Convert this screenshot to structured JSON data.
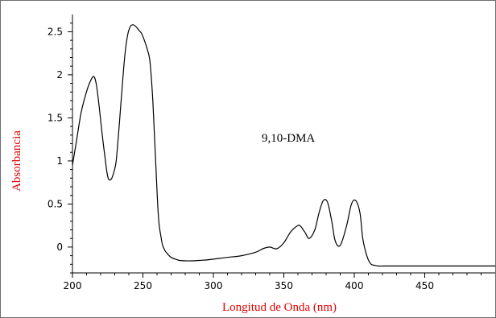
{
  "chart_data": {
    "type": "line",
    "xlabel": "Longitud de Onda (nm)",
    "ylabel": "Absorbancia",
    "annotation": "9,10-DMA",
    "xlim": [
      200,
      500
    ],
    "ylim": [
      -0.3,
      2.7
    ],
    "x_ticks": [
      200,
      250,
      300,
      350,
      400,
      450
    ],
    "x_tick_labels": [
      "200",
      "250",
      "300",
      "350",
      "400",
      "450"
    ],
    "y_ticks": [
      0,
      0.5,
      1,
      1.5,
      2,
      2.5
    ],
    "y_tick_labels": [
      "0",
      "0.5",
      "1",
      "1.5",
      "2",
      "2.5"
    ],
    "grid": false,
    "colors": {
      "line": "#000000",
      "axis_title": "#e00000"
    },
    "series": [
      {
        "x": [
          200,
          203,
          206,
          209,
          212,
          215,
          217,
          219,
          221,
          223,
          225,
          227,
          229,
          231,
          233,
          235,
          237,
          239,
          241,
          243,
          245,
          247,
          249,
          251,
          253,
          255,
          257,
          259,
          261,
          263,
          264,
          265,
          266,
          267,
          268,
          270,
          273,
          276,
          280,
          285,
          290,
          295,
          300,
          310,
          320,
          330,
          335,
          340,
          345,
          350,
          355,
          360,
          362,
          365,
          368,
          372,
          375,
          378,
          381,
          384,
          386,
          388,
          390,
          392,
          395,
          398,
          401,
          404,
          406,
          408,
          410,
          412,
          414,
          417,
          420,
          425,
          430,
          440,
          450,
          460,
          480,
          500
        ],
        "y": [
          0.95,
          1.25,
          1.55,
          1.75,
          1.9,
          1.98,
          1.88,
          1.62,
          1.32,
          1.05,
          0.82,
          0.78,
          0.85,
          1.0,
          1.38,
          1.8,
          2.2,
          2.45,
          2.56,
          2.58,
          2.56,
          2.52,
          2.48,
          2.4,
          2.3,
          2.15,
          1.7,
          1.0,
          0.35,
          0.1,
          0.02,
          -0.02,
          -0.05,
          -0.07,
          -0.09,
          -0.12,
          -0.14,
          -0.155,
          -0.16,
          -0.16,
          -0.155,
          -0.15,
          -0.14,
          -0.12,
          -0.1,
          -0.06,
          -0.02,
          0.0,
          -0.02,
          0.05,
          0.18,
          0.25,
          0.24,
          0.17,
          0.1,
          0.2,
          0.4,
          0.54,
          0.52,
          0.3,
          0.1,
          0.02,
          0.02,
          0.1,
          0.28,
          0.5,
          0.54,
          0.4,
          0.1,
          -0.05,
          -0.15,
          -0.2,
          -0.21,
          -0.22,
          -0.22,
          -0.22,
          -0.22,
          -0.22,
          -0.22,
          -0.22,
          -0.22,
          -0.22
        ]
      }
    ]
  }
}
